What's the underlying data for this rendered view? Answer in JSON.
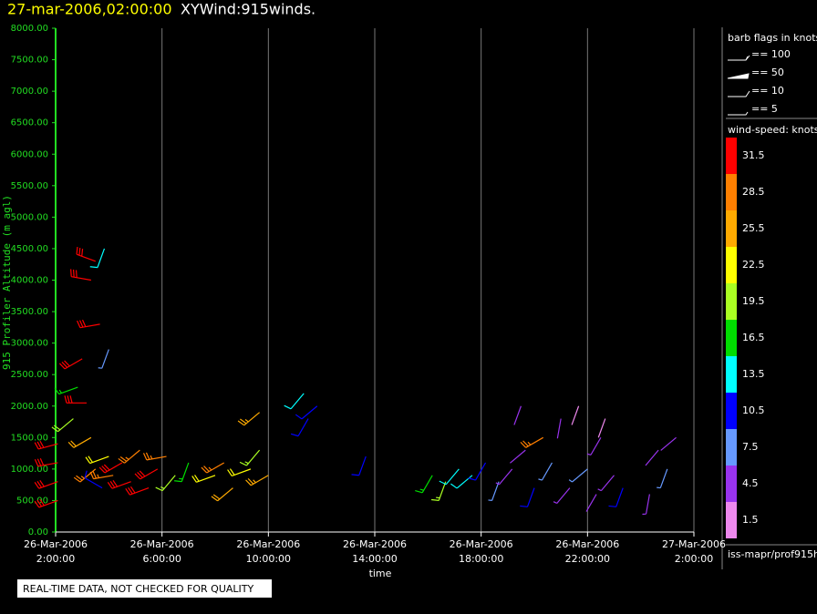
{
  "chart_data": {
    "type": "barbs",
    "title": "XYWind:915winds.",
    "subtitle": "27-mar-2006,02:00:00",
    "x_label": "time",
    "y_label": "915 Profiler Altitude (m agl)",
    "note": "REAL-TIME DATA, NOT CHECKED FOR QUALITY",
    "source": "iss-mapr/prof915h",
    "legend_title": "barb flags in knots",
    "legend_items": [
      "== 100",
      "== 50",
      "== 10",
      "== 5"
    ],
    "colorbar_title": "wind-speed: knots",
    "colorbar": [
      {
        "value": 31.5,
        "color": "#ff0000"
      },
      {
        "value": 28.5,
        "color": "#ff7f00"
      },
      {
        "value": 25.5,
        "color": "#ffaa00"
      },
      {
        "value": 22.5,
        "color": "#ffff00"
      },
      {
        "value": 19.5,
        "color": "#aaff22"
      },
      {
        "value": 16.5,
        "color": "#00dd00"
      },
      {
        "value": 13.5,
        "color": "#00ffff"
      },
      {
        "value": 10.5,
        "color": "#0000ff"
      },
      {
        "value": 7.5,
        "color": "#6699ff"
      },
      {
        "value": 4.5,
        "color": "#9933ee"
      },
      {
        "value": 1.5,
        "color": "#ee88ee"
      }
    ],
    "xlim": [
      "2006-03-26T02:00",
      "2006-03-27T02:00"
    ],
    "xticks": [
      {
        "value": "2006-03-26T02:00",
        "date": "26-Mar-2006",
        "time": "2:00:00"
      },
      {
        "value": "2006-03-26T06:00",
        "date": "26-Mar-2006",
        "time": "6:00:00"
      },
      {
        "value": "2006-03-26T10:00",
        "date": "26-Mar-2006",
        "time": "10:00:00"
      },
      {
        "value": "2006-03-26T14:00",
        "date": "26-Mar-2006",
        "time": "14:00:00"
      },
      {
        "value": "2006-03-26T18:00",
        "date": "26-Mar-2006",
        "time": "18:00:00"
      },
      {
        "value": "2006-03-26T22:00",
        "date": "26-Mar-2006",
        "time": "22:00:00"
      },
      {
        "value": "2006-03-27T02:00",
        "date": "27-Mar-2006",
        "time": "2:00:00"
      }
    ],
    "ylim": [
      0,
      8000
    ],
    "yticks": [
      {
        "value": 0,
        "label": "0.00"
      },
      {
        "value": 500,
        "label": "500.00"
      },
      {
        "value": 1000,
        "label": "1000.00"
      },
      {
        "value": 1500,
        "label": "1500.00"
      },
      {
        "value": 2000,
        "label": "2000.00"
      },
      {
        "value": 2500,
        "label": "2500.00"
      },
      {
        "value": 3000,
        "label": "3000.00"
      },
      {
        "value": 3500,
        "label": "3500.00"
      },
      {
        "value": 4000,
        "label": "4000.00"
      },
      {
        "value": 4500,
        "label": "4500.00"
      },
      {
        "value": 5000,
        "label": "5000.00"
      },
      {
        "value": 5500,
        "label": "5500.00"
      },
      {
        "value": 6000,
        "label": "6000.00"
      },
      {
        "value": 6500,
        "label": "6500.00"
      },
      {
        "value": 7000,
        "label": "7000.00"
      },
      {
        "value": 7500,
        "label": "7500.00"
      },
      {
        "value": 8000,
        "label": "8000.00"
      }
    ],
    "grid": true,
    "series": [
      {
        "x": [
          "2006-03-26T02:05",
          "2006-03-26T02:05",
          "2006-03-26T02:05",
          "2006-03-26T02:05",
          "2006-03-26T03:00",
          "2006-03-26T03:10",
          "2006-03-26T03:20",
          "2006-03-26T03:30",
          "2006-03-26T03:40",
          "2006-03-26T03:50",
          "2006-03-26T03:20",
          "2006-03-26T03:30",
          "2006-03-26T03:45",
          "2006-03-26T04:00",
          "2006-03-26T04:10",
          "2006-03-26T04:30",
          "2006-03-26T04:50",
          "2006-03-26T05:10",
          "2006-03-26T05:30",
          "2006-03-26T05:50",
          "2006-03-26T06:10",
          "2006-03-26T06:30",
          "2006-03-26T07:00",
          "2006-03-26T02:40",
          "2006-03-26T02:50",
          "2006-03-26T04:00",
          "2006-03-26T08:00",
          "2006-03-26T08:20",
          "2006-03-26T08:40",
          "2006-03-26T09:20",
          "2006-03-26T09:40",
          "2006-03-26T10:00",
          "2006-03-26T09:40",
          "2006-03-26T11:20",
          "2006-03-26T11:30",
          "2006-03-26T11:50",
          "2006-03-26T13:40",
          "2006-03-26T16:10",
          "2006-03-26T16:40",
          "2006-03-26T17:10",
          "2006-03-26T17:40",
          "2006-03-26T18:10",
          "2006-03-26T18:40",
          "2006-03-26T19:10",
          "2006-03-26T19:40",
          "2006-03-26T20:00",
          "2006-03-26T20:20",
          "2006-03-26T20:40",
          "2006-03-26T21:00",
          "2006-03-26T21:20",
          "2006-03-26T21:40",
          "2006-03-26T22:00",
          "2006-03-26T22:20",
          "2006-03-26T22:40",
          "2006-03-26T23:00",
          "2006-03-26T23:20",
          "2006-03-27T00:40",
          "2006-03-27T01:00",
          "2006-03-27T01:20",
          "2006-03-27T00:20",
          "2006-03-26T19:30",
          "2006-03-26T22:30"
        ],
        "values": [
          500,
          800,
          1100,
          1400,
          2750,
          2050,
          4000,
          4300,
          3300,
          4500,
          1500,
          1000,
          700,
          1200,
          900,
          1100,
          800,
          1300,
          700,
          1000,
          1200,
          900,
          1100,
          1800,
          2300,
          2900,
          900,
          1100,
          700,
          1000,
          1300,
          900,
          1900,
          2200,
          1800,
          2000,
          1200,
          900,
          800,
          1000,
          900,
          1100,
          800,
          1000,
          1300,
          700,
          1500,
          1100,
          1800,
          700,
          2000,
          1000,
          600,
          1800,
          900,
          700,
          1300,
          1000,
          1500,
          600,
          2000,
          1500
        ],
        "speed": [
          31,
          31,
          30,
          31,
          30,
          31,
          31,
          32,
          30,
          14,
          24,
          27,
          11,
          23,
          28,
          31,
          30,
          29,
          31,
          30,
          28,
          18,
          17,
          20,
          16,
          8,
          22,
          27,
          24,
          23,
          19,
          25,
          26,
          13,
          10,
          10,
          10,
          17,
          19,
          13,
          14,
          10,
          7,
          5,
          4,
          11,
          29,
          7,
          3,
          5,
          2,
          6,
          4,
          2,
          5,
          10,
          4,
          6,
          3,
          5,
          3,
          5
        ],
        "direction": [
          250,
          250,
          260,
          255,
          240,
          270,
          280,
          290,
          260,
          200,
          240,
          230,
          300,
          250,
          260,
          240,
          250,
          230,
          250,
          240,
          260,
          220,
          200,
          230,
          250,
          200,
          250,
          240,
          230,
          250,
          220,
          240,
          230,
          220,
          210,
          230,
          200,
          210,
          200,
          220,
          230,
          210,
          200,
          220,
          230,
          200,
          240,
          210,
          190,
          220,
          200,
          230,
          210,
          200,
          220,
          200,
          220,
          200,
          230,
          190,
          200,
          210
        ]
      }
    ]
  }
}
